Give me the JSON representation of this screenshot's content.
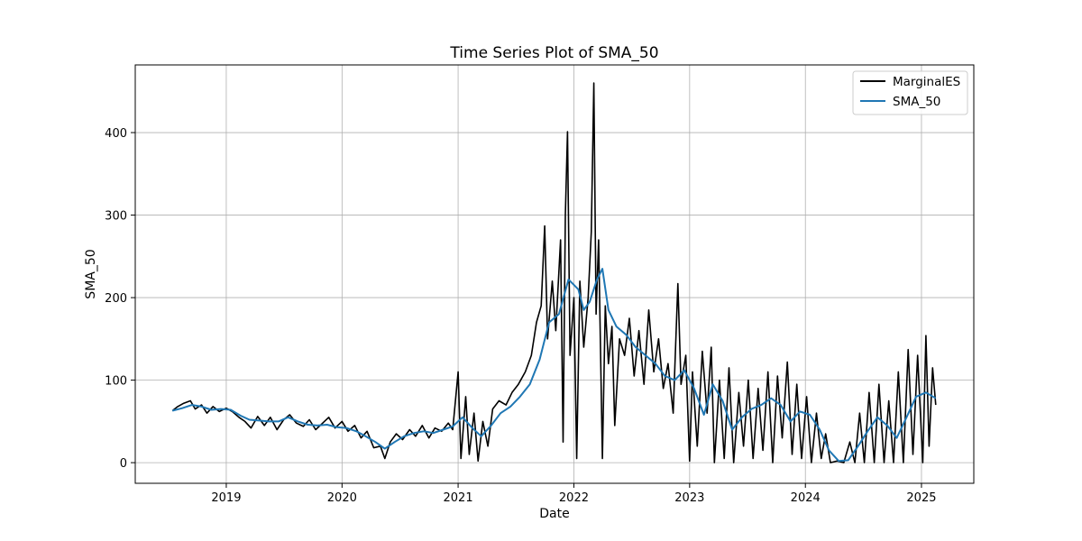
{
  "chart_data": {
    "type": "line",
    "title": "Time Series Plot of SMA_50",
    "xlabel": "Date",
    "ylabel": "SMA_50",
    "xlim": [
      "2018-03-20",
      "2025-06-15"
    ],
    "ylim": [
      -25,
      482
    ],
    "grid": true,
    "legend_position": "top-right",
    "x_ticks": [
      "2019-01-01",
      "2020-01-01",
      "2021-01-01",
      "2022-01-01",
      "2023-01-01",
      "2024-01-01",
      "2025-01-01"
    ],
    "x_tick_labels": [
      "2019",
      "2020",
      "2021",
      "2022",
      "2023",
      "2024",
      "2025"
    ],
    "y_ticks": [
      0,
      100,
      200,
      300,
      400
    ],
    "y_tick_labels": [
      "0",
      "100",
      "200",
      "300",
      "400"
    ],
    "series": [
      {
        "name": "MarginalES",
        "color": "#000000",
        "points": [
          [
            "2018-07-15",
            63
          ],
          [
            "2018-08-01",
            68
          ],
          [
            "2018-08-20",
            72
          ],
          [
            "2018-09-10",
            75
          ],
          [
            "2018-09-25",
            65
          ],
          [
            "2018-10-15",
            70
          ],
          [
            "2018-11-01",
            60
          ],
          [
            "2018-11-20",
            68
          ],
          [
            "2018-12-10",
            62
          ],
          [
            "2019-01-01",
            66
          ],
          [
            "2019-01-20",
            62
          ],
          [
            "2019-02-10",
            55
          ],
          [
            "2019-03-01",
            50
          ],
          [
            "2019-03-20",
            42
          ],
          [
            "2019-04-10",
            56
          ],
          [
            "2019-05-01",
            45
          ],
          [
            "2019-05-20",
            55
          ],
          [
            "2019-06-10",
            40
          ],
          [
            "2019-07-01",
            52
          ],
          [
            "2019-07-20",
            58
          ],
          [
            "2019-08-10",
            48
          ],
          [
            "2019-09-01",
            44
          ],
          [
            "2019-09-20",
            52
          ],
          [
            "2019-10-10",
            40
          ],
          [
            "2019-11-01",
            48
          ],
          [
            "2019-11-20",
            55
          ],
          [
            "2019-12-10",
            42
          ],
          [
            "2020-01-01",
            50
          ],
          [
            "2020-01-20",
            38
          ],
          [
            "2020-02-10",
            45
          ],
          [
            "2020-03-01",
            30
          ],
          [
            "2020-03-20",
            38
          ],
          [
            "2020-04-10",
            18
          ],
          [
            "2020-05-01",
            20
          ],
          [
            "2020-05-15",
            5
          ],
          [
            "2020-06-01",
            25
          ],
          [
            "2020-06-20",
            35
          ],
          [
            "2020-07-10",
            28
          ],
          [
            "2020-08-01",
            40
          ],
          [
            "2020-08-20",
            32
          ],
          [
            "2020-09-10",
            45
          ],
          [
            "2020-10-01",
            30
          ],
          [
            "2020-10-20",
            42
          ],
          [
            "2020-11-10",
            38
          ],
          [
            "2020-12-01",
            48
          ],
          [
            "2020-12-15",
            40
          ],
          [
            "2021-01-01",
            110
          ],
          [
            "2021-01-10",
            5
          ],
          [
            "2021-01-25",
            80
          ],
          [
            "2021-02-05",
            10
          ],
          [
            "2021-02-20",
            60
          ],
          [
            "2021-03-05",
            2
          ],
          [
            "2021-03-20",
            50
          ],
          [
            "2021-04-05",
            20
          ],
          [
            "2021-04-20",
            65
          ],
          [
            "2021-05-10",
            75
          ],
          [
            "2021-06-01",
            70
          ],
          [
            "2021-06-20",
            85
          ],
          [
            "2021-07-10",
            95
          ],
          [
            "2021-08-01",
            110
          ],
          [
            "2021-08-20",
            130
          ],
          [
            "2021-09-05",
            170
          ],
          [
            "2021-09-20",
            190
          ],
          [
            "2021-10-01",
            287
          ],
          [
            "2021-10-10",
            150
          ],
          [
            "2021-10-25",
            220
          ],
          [
            "2021-11-05",
            160
          ],
          [
            "2021-11-20",
            270
          ],
          [
            "2021-11-28",
            25
          ],
          [
            "2021-12-05",
            300
          ],
          [
            "2021-12-12",
            401
          ],
          [
            "2021-12-20",
            130
          ],
          [
            "2022-01-01",
            200
          ],
          [
            "2022-01-10",
            5
          ],
          [
            "2022-01-20",
            220
          ],
          [
            "2022-02-01",
            140
          ],
          [
            "2022-02-15",
            200
          ],
          [
            "2022-02-25",
            280
          ],
          [
            "2022-03-05",
            460
          ],
          [
            "2022-03-12",
            180
          ],
          [
            "2022-03-20",
            270
          ],
          [
            "2022-04-01",
            5
          ],
          [
            "2022-04-10",
            190
          ],
          [
            "2022-04-20",
            120
          ],
          [
            "2022-05-01",
            165
          ],
          [
            "2022-05-10",
            45
          ],
          [
            "2022-05-25",
            150
          ],
          [
            "2022-06-10",
            130
          ],
          [
            "2022-06-25",
            175
          ],
          [
            "2022-07-10",
            105
          ],
          [
            "2022-07-25",
            160
          ],
          [
            "2022-08-10",
            95
          ],
          [
            "2022-08-25",
            185
          ],
          [
            "2022-09-10",
            110
          ],
          [
            "2022-09-25",
            150
          ],
          [
            "2022-10-10",
            90
          ],
          [
            "2022-10-25",
            120
          ],
          [
            "2022-11-10",
            60
          ],
          [
            "2022-11-25",
            217
          ],
          [
            "2022-12-05",
            95
          ],
          [
            "2022-12-20",
            130
          ],
          [
            "2023-01-01",
            2
          ],
          [
            "2023-01-10",
            110
          ],
          [
            "2023-01-25",
            20
          ],
          [
            "2023-02-10",
            135
          ],
          [
            "2023-02-25",
            60
          ],
          [
            "2023-03-10",
            140
          ],
          [
            "2023-03-20",
            0
          ],
          [
            "2023-04-05",
            100
          ],
          [
            "2023-04-20",
            5
          ],
          [
            "2023-05-05",
            115
          ],
          [
            "2023-05-20",
            0
          ],
          [
            "2023-06-05",
            85
          ],
          [
            "2023-06-20",
            20
          ],
          [
            "2023-07-05",
            100
          ],
          [
            "2023-07-20",
            5
          ],
          [
            "2023-08-05",
            90
          ],
          [
            "2023-08-20",
            15
          ],
          [
            "2023-09-05",
            110
          ],
          [
            "2023-09-20",
            0
          ],
          [
            "2023-10-05",
            105
          ],
          [
            "2023-10-20",
            30
          ],
          [
            "2023-11-05",
            122
          ],
          [
            "2023-11-20",
            10
          ],
          [
            "2023-12-05",
            95
          ],
          [
            "2023-12-20",
            5
          ],
          [
            "2024-01-05",
            80
          ],
          [
            "2024-01-20",
            0
          ],
          [
            "2024-02-05",
            60
          ],
          [
            "2024-02-20",
            5
          ],
          [
            "2024-03-05",
            35
          ],
          [
            "2024-03-20",
            0
          ],
          [
            "2024-04-10",
            2
          ],
          [
            "2024-05-01",
            0
          ],
          [
            "2024-05-20",
            25
          ],
          [
            "2024-06-05",
            0
          ],
          [
            "2024-06-20",
            60
          ],
          [
            "2024-07-05",
            0
          ],
          [
            "2024-07-20",
            85
          ],
          [
            "2024-08-05",
            0
          ],
          [
            "2024-08-20",
            95
          ],
          [
            "2024-09-05",
            0
          ],
          [
            "2024-09-20",
            75
          ],
          [
            "2024-10-05",
            0
          ],
          [
            "2024-10-20",
            110
          ],
          [
            "2024-11-05",
            0
          ],
          [
            "2024-11-20",
            137
          ],
          [
            "2024-12-05",
            10
          ],
          [
            "2024-12-20",
            130
          ],
          [
            "2025-01-05",
            0
          ],
          [
            "2025-01-15",
            154
          ],
          [
            "2025-01-25",
            20
          ],
          [
            "2025-02-05",
            115
          ],
          [
            "2025-02-15",
            70
          ]
        ]
      },
      {
        "name": "SMA_50",
        "color": "#1f77b4",
        "points": [
          [
            "2018-07-15",
            63
          ],
          [
            "2018-08-15",
            66
          ],
          [
            "2018-09-15",
            70
          ],
          [
            "2018-10-15",
            68
          ],
          [
            "2018-11-15",
            64
          ],
          [
            "2018-12-15",
            65
          ],
          [
            "2019-01-15",
            64
          ],
          [
            "2019-02-15",
            57
          ],
          [
            "2019-03-15",
            52
          ],
          [
            "2019-04-15",
            51
          ],
          [
            "2019-05-15",
            50
          ],
          [
            "2019-06-15",
            50
          ],
          [
            "2019-07-15",
            55
          ],
          [
            "2019-08-15",
            50
          ],
          [
            "2019-09-15",
            46
          ],
          [
            "2019-10-15",
            45
          ],
          [
            "2019-11-15",
            46
          ],
          [
            "2019-12-15",
            43
          ],
          [
            "2020-01-15",
            42
          ],
          [
            "2020-02-15",
            38
          ],
          [
            "2020-03-15",
            32
          ],
          [
            "2020-04-15",
            25
          ],
          [
            "2020-05-15",
            17
          ],
          [
            "2020-06-15",
            25
          ],
          [
            "2020-07-15",
            32
          ],
          [
            "2020-08-15",
            36
          ],
          [
            "2020-09-15",
            38
          ],
          [
            "2020-10-15",
            36
          ],
          [
            "2020-11-15",
            40
          ],
          [
            "2020-12-15",
            44
          ],
          [
            "2021-01-15",
            55
          ],
          [
            "2021-02-15",
            42
          ],
          [
            "2021-03-15",
            32
          ],
          [
            "2021-04-15",
            45
          ],
          [
            "2021-05-15",
            60
          ],
          [
            "2021-06-15",
            68
          ],
          [
            "2021-07-15",
            80
          ],
          [
            "2021-08-15",
            95
          ],
          [
            "2021-09-15",
            125
          ],
          [
            "2021-10-15",
            170
          ],
          [
            "2021-11-15",
            180
          ],
          [
            "2021-12-15",
            222
          ],
          [
            "2022-01-15",
            210
          ],
          [
            "2022-02-01",
            185
          ],
          [
            "2022-02-20",
            195
          ],
          [
            "2022-03-15",
            222
          ],
          [
            "2022-04-01",
            235
          ],
          [
            "2022-04-20",
            185
          ],
          [
            "2022-05-15",
            165
          ],
          [
            "2022-06-15",
            155
          ],
          [
            "2022-07-15",
            140
          ],
          [
            "2022-08-15",
            130
          ],
          [
            "2022-09-15",
            120
          ],
          [
            "2022-10-15",
            105
          ],
          [
            "2022-11-15",
            100
          ],
          [
            "2022-12-15",
            112
          ],
          [
            "2023-01-15",
            90
          ],
          [
            "2023-02-15",
            58
          ],
          [
            "2023-03-15",
            95
          ],
          [
            "2023-04-15",
            75
          ],
          [
            "2023-05-15",
            40
          ],
          [
            "2023-06-15",
            55
          ],
          [
            "2023-07-15",
            65
          ],
          [
            "2023-08-15",
            70
          ],
          [
            "2023-09-15",
            78
          ],
          [
            "2023-10-15",
            70
          ],
          [
            "2023-11-15",
            50
          ],
          [
            "2023-12-15",
            62
          ],
          [
            "2024-01-15",
            58
          ],
          [
            "2024-02-15",
            40
          ],
          [
            "2024-03-15",
            15
          ],
          [
            "2024-04-15",
            2
          ],
          [
            "2024-05-15",
            3
          ],
          [
            "2024-06-15",
            20
          ],
          [
            "2024-07-15",
            38
          ],
          [
            "2024-08-15",
            55
          ],
          [
            "2024-09-15",
            45
          ],
          [
            "2024-10-15",
            30
          ],
          [
            "2024-11-15",
            55
          ],
          [
            "2024-12-15",
            80
          ],
          [
            "2025-01-15",
            85
          ],
          [
            "2025-02-15",
            78
          ]
        ]
      }
    ]
  }
}
